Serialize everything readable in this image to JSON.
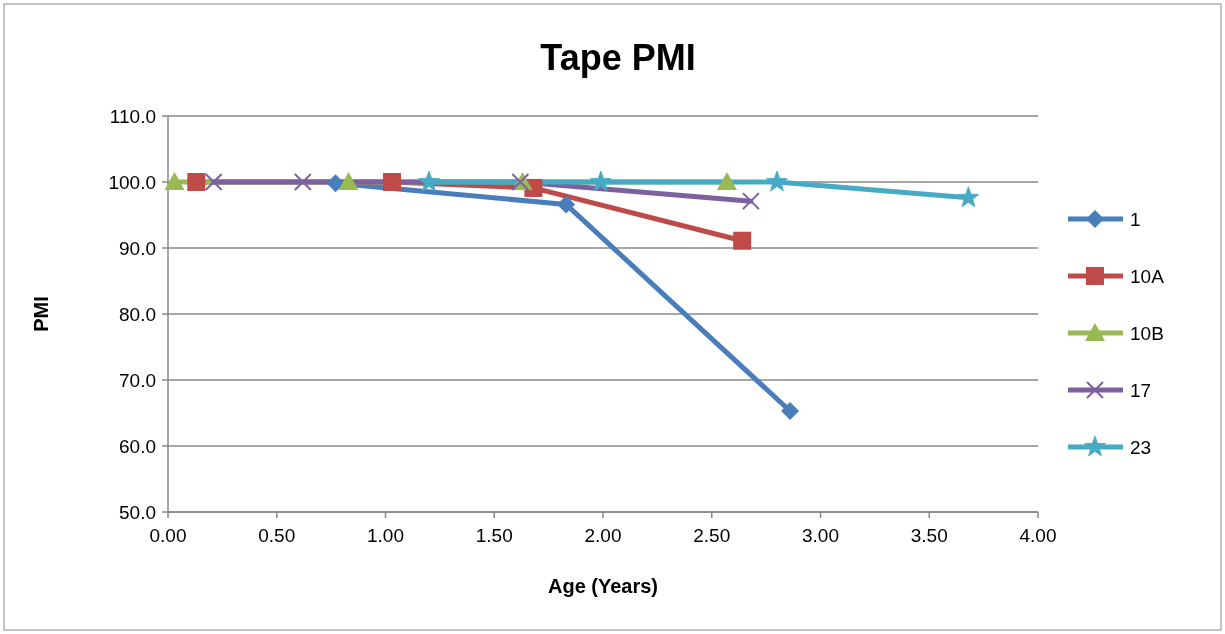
{
  "chart_data": {
    "type": "line",
    "title": "Tape PMI",
    "xlabel": "Age (Years)",
    "ylabel": "PMI",
    "xlim": [
      0,
      4
    ],
    "xticks": [
      {
        "value": 0,
        "label": "0.00"
      },
      {
        "value": 0.5,
        "label": "0.50"
      },
      {
        "value": 1,
        "label": "1.00"
      },
      {
        "value": 1.5,
        "label": "1.50"
      },
      {
        "value": 2,
        "label": "2.00"
      },
      {
        "value": 2.5,
        "label": "2.50"
      },
      {
        "value": 3,
        "label": "3.00"
      },
      {
        "value": 3.5,
        "label": "3.50"
      },
      {
        "value": 4,
        "label": "4.00"
      }
    ],
    "ylim": [
      50,
      110
    ],
    "yticks": [
      {
        "value": 50,
        "label": "50.0"
      },
      {
        "value": 60,
        "label": "60.0"
      },
      {
        "value": 70,
        "label": "70.0"
      },
      {
        "value": 80,
        "label": "80.0"
      },
      {
        "value": 90,
        "label": "90.0"
      },
      {
        "value": 100,
        "label": "100.0"
      },
      {
        "value": 110,
        "label": "110.0"
      }
    ],
    "grid": "y",
    "legend": "right",
    "line_style": "solid",
    "series": [
      {
        "name": "1",
        "color": "#4a7ebb",
        "marker": "diamond",
        "x": [
          0.77,
          1.83,
          2.86
        ],
        "values": [
          99.8,
          96.6,
          65.3
        ]
      },
      {
        "name": "10A",
        "color": "#be4b48",
        "marker": "square",
        "x": [
          0.13,
          1.03,
          1.68,
          2.64
        ],
        "values": [
          100,
          100,
          99.1,
          91.1
        ]
      },
      {
        "name": "10B",
        "color": "#98b954",
        "marker": "triangle",
        "x": [
          0.03,
          0.83,
          1.63,
          2.57
        ],
        "values": [
          100,
          100,
          100,
          100
        ]
      },
      {
        "name": "17",
        "color": "#7d60a0",
        "marker": "cross",
        "x": [
          0.21,
          0.62,
          1.62,
          2.68
        ],
        "values": [
          100,
          100,
          100,
          97.1
        ]
      },
      {
        "name": "23",
        "color": "#46aac5",
        "marker": "star",
        "x": [
          1.2,
          1.99,
          2.8,
          3.68
        ],
        "values": [
          100,
          100,
          100,
          97.6
        ]
      }
    ]
  }
}
